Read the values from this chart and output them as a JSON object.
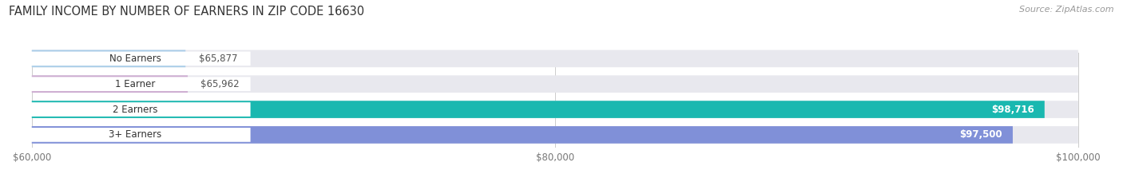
{
  "title": "FAMILY INCOME BY NUMBER OF EARNERS IN ZIP CODE 16630",
  "source": "Source: ZipAtlas.com",
  "categories": [
    "No Earners",
    "1 Earner",
    "2 Earners",
    "3+ Earners"
  ],
  "values": [
    65877,
    65962,
    98716,
    97500
  ],
  "bar_colors": [
    "#a8cce8",
    "#ccaad0",
    "#1ab8b0",
    "#8090d8"
  ],
  "label_colors": [
    "#444444",
    "#444444",
    "#ffffff",
    "#ffffff"
  ],
  "xmin": 60000,
  "xmax": 100000,
  "xticks": [
    60000,
    80000,
    100000
  ],
  "xtick_labels": [
    "$60,000",
    "$80,000",
    "$100,000"
  ],
  "background_color": "#ffffff",
  "bar_bg_color": "#e8e8ee",
  "title_fontsize": 10.5,
  "source_fontsize": 8,
  "label_pill_color": "#ffffff",
  "bar_height": 0.68,
  "bar_spacing": 1.0
}
